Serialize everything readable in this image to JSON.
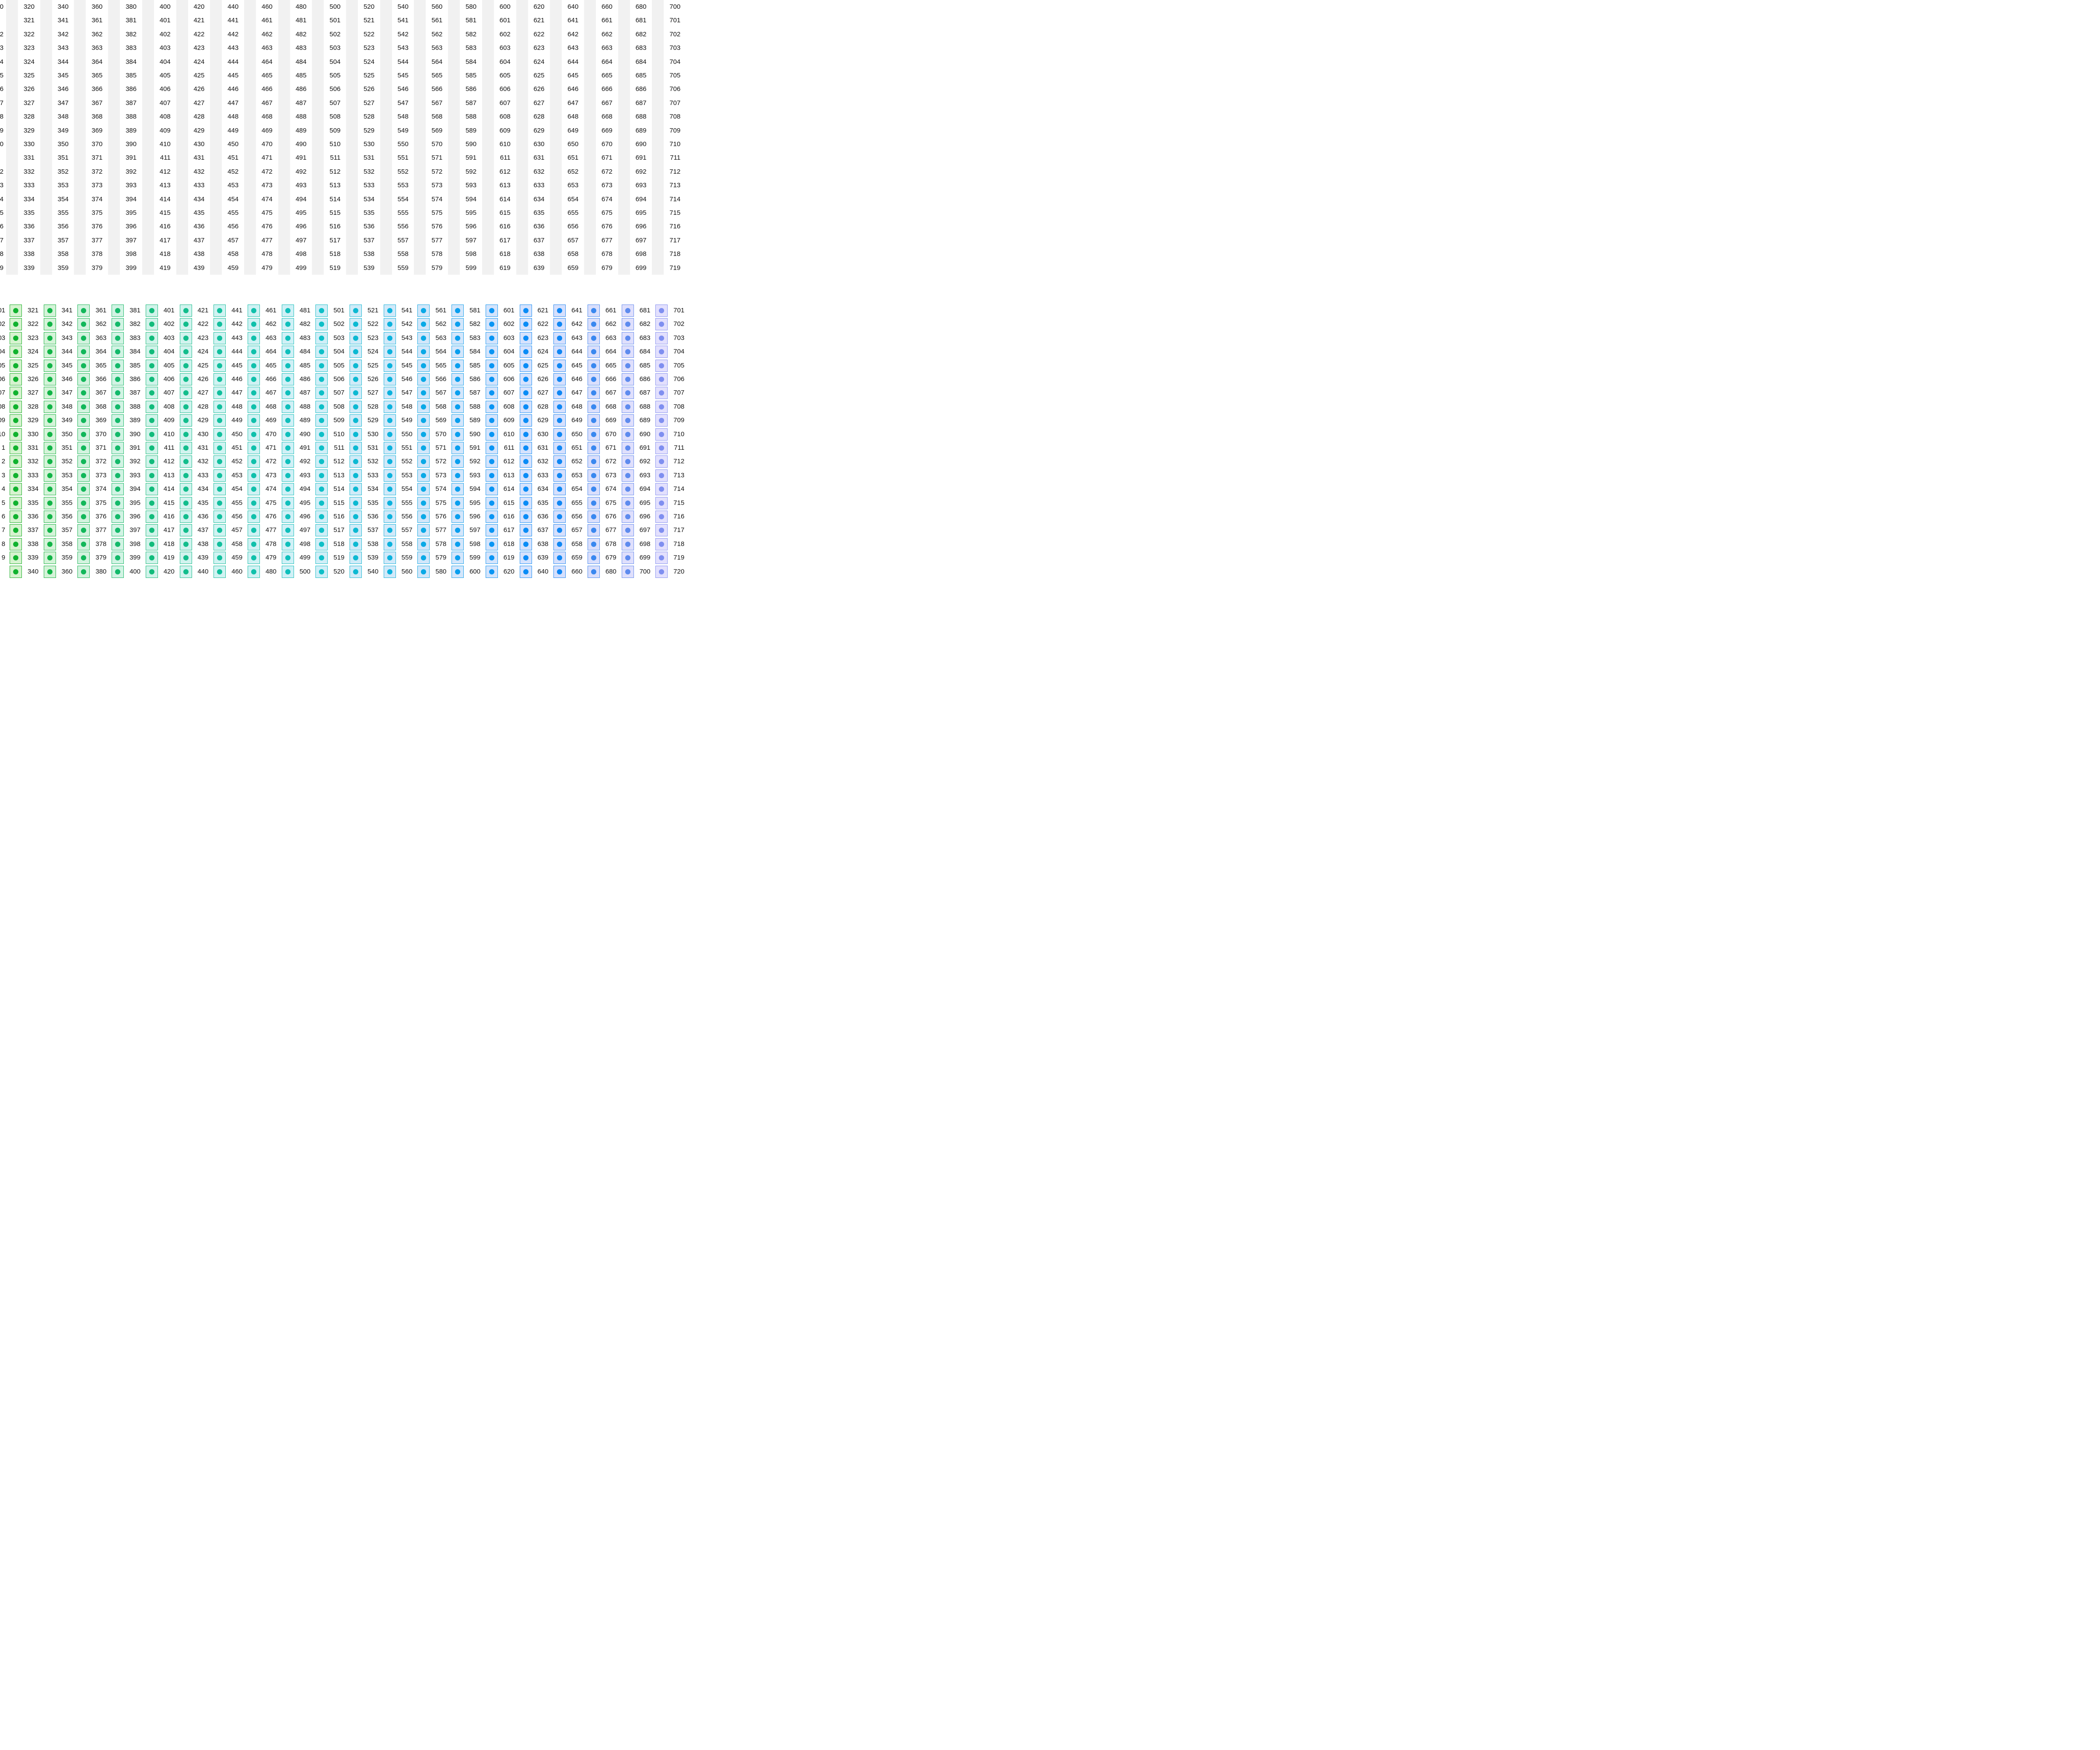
{
  "top_table": {
    "column_starts": [
      320,
      340,
      360,
      380,
      400,
      420,
      440,
      460,
      480,
      500,
      520,
      540,
      560,
      580,
      600,
      620,
      640,
      660,
      680,
      700
    ],
    "row_count": 20,
    "left_edge_partial": [
      "0",
      "",
      "2",
      "3",
      "4",
      "5",
      "6",
      "7",
      "8",
      "9",
      "0",
      "",
      "2",
      "3",
      "4",
      "5",
      "6",
      "7",
      "8",
      "9"
    ]
  },
  "bottom_grid": {
    "column_starts": [
      321,
      341,
      361,
      381,
      401,
      421,
      441,
      461,
      481,
      501,
      521,
      541,
      561,
      581,
      601,
      621,
      641,
      661,
      681,
      701
    ],
    "row_count": 19,
    "left_edge_partial": [
      "01",
      "02",
      "03",
      "04",
      "05",
      "06",
      "07",
      "08",
      "09",
      "10",
      "1",
      "2",
      "3",
      "4",
      "5",
      "6",
      "7",
      "8",
      "9"
    ],
    "partial_last_row": [
      "340",
      "360",
      "380",
      "400",
      "420",
      "440",
      "460",
      "480",
      "500",
      "520",
      "540",
      "560",
      "580",
      "600",
      "620",
      "640",
      "660",
      "680",
      "700",
      "720"
    ],
    "dot_colors": [
      "#10b22e",
      "#11b447",
      "#12b75a",
      "#13b96a",
      "#12bb7b",
      "#12bd8c",
      "#11bf9c",
      "#10c0ab",
      "#0fbfbb",
      "#0ebfc7",
      "#0cb9d2",
      "#0bb2dd",
      "#0aa9e6",
      "#0a9fee",
      "#0a95f3",
      "#0a8cf6",
      "#0f87f3",
      "#3a88ef",
      "#5e8bee",
      "#7f8ff0"
    ],
    "box_fills": [
      "#d6f3cf",
      "#d4f3d8",
      "#d3f3df",
      "#d2f3e4",
      "#d1f3ea",
      "#d1f3ee",
      "#d1f3f2",
      "#d0f2f4",
      "#d0f0f6",
      "#d0eef7",
      "#d0ebf8",
      "#d1e9f9",
      "#d2e7fa",
      "#d4e6fb",
      "#d4e4fc",
      "#d5e2fd",
      "#d6e0fd",
      "#dadffc",
      "#dfdffc",
      "#e3e0fd"
    ],
    "box_borders": [
      "#22b02e",
      "#22b548",
      "#22b85b",
      "#22ba6d",
      "#22bc7e",
      "#22be8f",
      "#22c09e",
      "#22c1ad",
      "#22c1bc",
      "#22c0c8",
      "#22bbd3",
      "#22b5dc",
      "#22ade4",
      "#22a4eb",
      "#229af1",
      "#2292f4",
      "#2e8cf1",
      "#4f8eee",
      "#6c90ee",
      "#8a94f0"
    ]
  }
}
